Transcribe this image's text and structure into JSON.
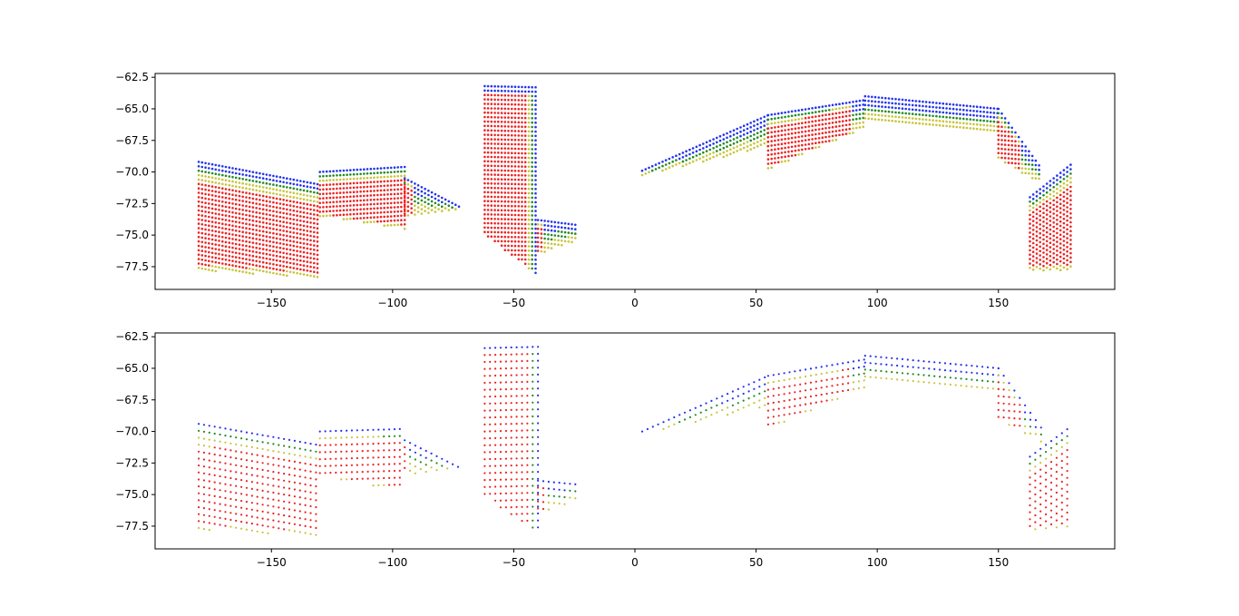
{
  "chart_data": [
    {
      "type": "scatter",
      "panel": "top",
      "title": "",
      "xlabel": "",
      "ylabel": "",
      "xlim": [
        -198,
        198
      ],
      "ylim": [
        -79.3,
        -62.2
      ],
      "xticks": [
        -150,
        -100,
        -50,
        0,
        50,
        100,
        150
      ],
      "xtick_labels": [
        "−150",
        "−100",
        "−50",
        "0",
        "50",
        "100",
        "150"
      ],
      "yticks": [
        -62.5,
        -65.0,
        -67.5,
        -70.0,
        -72.5,
        -75.0,
        -77.5
      ],
      "ytick_labels": [
        "−62.5",
        "−65.0",
        "−67.5",
        "−70.0",
        "−72.5",
        "−75.0",
        "−77.5"
      ],
      "grid": false,
      "legend": "none",
      "grid_step": 1.4,
      "color_classes": {
        "interior": "#ee2222",
        "mid": "#c8c43a",
        "outer": "#228b22",
        "edge": "#2233ee"
      },
      "regions": [
        {
          "kind": "coast",
          "x": [
            -180,
            -130
          ],
          "top": [
            -69.2,
            -71.0
          ],
          "bottom": [
            -77.8,
            -78.4
          ]
        },
        {
          "kind": "coast",
          "x": [
            -130,
            -95
          ],
          "top": [
            -70.0,
            -69.6
          ],
          "bottom": [
            -73.5,
            -74.5
          ]
        },
        {
          "kind": "coast",
          "x": [
            -95,
            -72
          ],
          "top": [
            -70.5,
            -72.8
          ],
          "bottom": [
            -73.5,
            -73.0
          ]
        },
        {
          "kind": "peninsula",
          "x": [
            -62,
            -40
          ],
          "top": [
            -63.2,
            -63.3
          ],
          "bottom": [
            -75.0,
            -78.2
          ]
        },
        {
          "kind": "coast",
          "x": [
            -40,
            -24
          ],
          "top": [
            -73.8,
            -74.2
          ],
          "bottom": [
            -76.5,
            -75.5
          ]
        },
        {
          "kind": "coast",
          "x": [
            3,
            55
          ],
          "top": [
            -69.9,
            -65.5
          ],
          "bottom": [
            -70.3,
            -68.0
          ]
        },
        {
          "kind": "coast",
          "x": [
            55,
            95
          ],
          "top": [
            -65.5,
            -64.3
          ],
          "bottom": [
            -69.8,
            -66.5
          ]
        },
        {
          "kind": "coast",
          "x": [
            95,
            150
          ],
          "top": [
            -64.0,
            -65.0
          ],
          "bottom": [
            -66.0,
            -67.0
          ]
        },
        {
          "kind": "coast",
          "x": [
            150,
            168
          ],
          "top": [
            -65.0,
            -69.8
          ],
          "bottom": [
            -69.0,
            -71.0
          ]
        },
        {
          "kind": "coast",
          "x": [
            163,
            180
          ],
          "top": [
            -72.0,
            -69.4
          ],
          "bottom": [
            -77.8,
            -77.8
          ]
        }
      ]
    },
    {
      "type": "scatter",
      "panel": "bottom",
      "title": "",
      "xlabel": "",
      "ylabel": "",
      "xlim": [
        -198,
        198
      ],
      "ylim": [
        -79.3,
        -62.2
      ],
      "xticks": [
        -150,
        -100,
        -50,
        0,
        50,
        100,
        150
      ],
      "xtick_labels": [
        "−150",
        "−100",
        "−50",
        "0",
        "50",
        "100",
        "150"
      ],
      "yticks": [
        -62.5,
        -65.0,
        -67.5,
        -70.0,
        -72.5,
        -75.0,
        -77.5
      ],
      "ytick_labels": [
        "−62.5",
        "−65.0",
        "−67.5",
        "−70.0",
        "−72.5",
        "−75.0",
        "−77.5"
      ],
      "grid": false,
      "legend": "none",
      "grid_step": 2.2,
      "color_classes": {
        "interior": "#ee2222",
        "mid": "#c8c43a",
        "outer": "#228b22",
        "edge": "#2233ee"
      },
      "regions": [
        {
          "kind": "coast",
          "x": [
            -180,
            -130
          ],
          "top": [
            -69.4,
            -71.1
          ],
          "bottom": [
            -77.8,
            -78.3
          ]
        },
        {
          "kind": "coast",
          "x": [
            -130,
            -95
          ],
          "top": [
            -70.0,
            -69.8
          ],
          "bottom": [
            -73.5,
            -74.8
          ]
        },
        {
          "kind": "coast",
          "x": [
            -95,
            -72
          ],
          "top": [
            -70.7,
            -72.9
          ],
          "bottom": [
            -73.4,
            -73.0
          ]
        },
        {
          "kind": "peninsula",
          "x": [
            -62,
            -40
          ],
          "top": [
            -63.4,
            -63.3
          ],
          "bottom": [
            -75.2,
            -78.0
          ]
        },
        {
          "kind": "coast",
          "x": [
            -40,
            -24
          ],
          "top": [
            -73.9,
            -74.2
          ],
          "bottom": [
            -76.6,
            -75.5
          ]
        },
        {
          "kind": "coast",
          "x": [
            3,
            55
          ],
          "top": [
            -70.0,
            -65.6
          ],
          "bottom": [
            -70.2,
            -68.0
          ]
        },
        {
          "kind": "coast",
          "x": [
            55,
            95
          ],
          "top": [
            -65.6,
            -64.3
          ],
          "bottom": [
            -69.8,
            -66.5
          ]
        },
        {
          "kind": "coast",
          "x": [
            95,
            150
          ],
          "top": [
            -64.0,
            -65.0
          ],
          "bottom": [
            -66.0,
            -67.0
          ]
        },
        {
          "kind": "coast",
          "x": [
            150,
            168
          ],
          "top": [
            -65.0,
            -69.8
          ],
          "bottom": [
            -69.2,
            -71.0
          ]
        },
        {
          "kind": "coast",
          "x": [
            163,
            180
          ],
          "top": [
            -72.0,
            -69.6
          ],
          "bottom": [
            -77.8,
            -77.8
          ]
        }
      ]
    }
  ]
}
